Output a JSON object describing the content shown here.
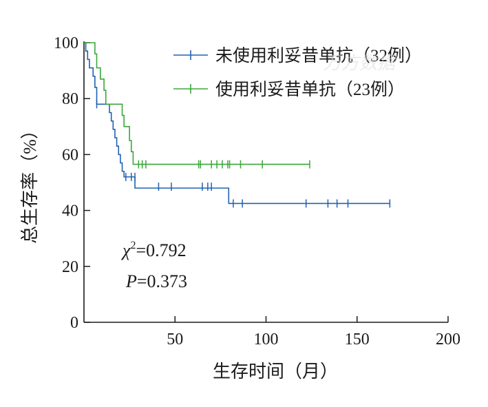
{
  "chart_data": {
    "type": "line",
    "subtype": "kaplan-meier",
    "xlabel": "生存时间（月）",
    "ylabel": "总生存率（%）",
    "xlim": [
      0,
      200
    ],
    "ylim": [
      0,
      100
    ],
    "x_ticks": [
      50,
      100,
      150,
      200
    ],
    "y_ticks": [
      0,
      20,
      40,
      60,
      80,
      100
    ],
    "grid": false,
    "legend_position": "top-right",
    "series": [
      {
        "name": "未使用利妥昔单抗（32例）",
        "color": "#2060b0",
        "steps": [
          [
            0,
            100
          ],
          [
            1,
            97
          ],
          [
            2,
            94
          ],
          [
            3,
            91
          ],
          [
            5,
            88
          ],
          [
            6,
            84
          ],
          [
            7,
            78
          ],
          [
            13,
            78
          ],
          [
            14,
            75
          ],
          [
            15,
            72
          ],
          [
            16,
            69
          ],
          [
            17,
            66
          ],
          [
            18,
            63
          ],
          [
            19,
            60
          ],
          [
            20,
            57
          ],
          [
            21,
            54
          ],
          [
            22,
            52
          ],
          [
            28,
            48
          ],
          [
            79,
            48
          ],
          [
            79.5,
            42.5
          ],
          [
            168,
            42.5
          ]
        ],
        "censored": [
          [
            7,
            78
          ],
          [
            23,
            52
          ],
          [
            26,
            52
          ],
          [
            28,
            52
          ],
          [
            41,
            48.5
          ],
          [
            48,
            48.5
          ],
          [
            65,
            48.5
          ],
          [
            68,
            48.5
          ],
          [
            70,
            48.5
          ],
          [
            82,
            42.5
          ],
          [
            87,
            42.5
          ],
          [
            122,
            42.5
          ],
          [
            134,
            42.5
          ],
          [
            139,
            42.5
          ],
          [
            145,
            42.5
          ],
          [
            168,
            42.5
          ]
        ]
      },
      {
        "name": "使用利妥昔单抗（23例）",
        "color": "#3aa63a",
        "steps": [
          [
            0,
            100
          ],
          [
            5,
            100
          ],
          [
            6,
            96
          ],
          [
            7,
            91
          ],
          [
            9,
            87
          ],
          [
            11,
            83
          ],
          [
            12,
            78
          ],
          [
            20,
            78
          ],
          [
            21,
            74
          ],
          [
            22,
            70
          ],
          [
            25,
            65
          ],
          [
            26,
            61
          ],
          [
            27,
            56.5
          ],
          [
            124,
            56.5
          ]
        ],
        "censored": [
          [
            30,
            56.5
          ],
          [
            32,
            56.5
          ],
          [
            34,
            56.5
          ],
          [
            63,
            56.5
          ],
          [
            64,
            56.5
          ],
          [
            70,
            56.5
          ],
          [
            73,
            56.5
          ],
          [
            76,
            56.5
          ],
          [
            79,
            56.5
          ],
          [
            80,
            56.5
          ],
          [
            86,
            56.5
          ],
          [
            98,
            56.5
          ],
          [
            124,
            56.5
          ]
        ]
      }
    ],
    "annotations": {
      "chi_symbol": "χ",
      "chi_sup": "2",
      "chi_value": "=0.792",
      "p_symbol": "P",
      "p_value": "=0.373"
    },
    "watermark": "万方数据"
  }
}
